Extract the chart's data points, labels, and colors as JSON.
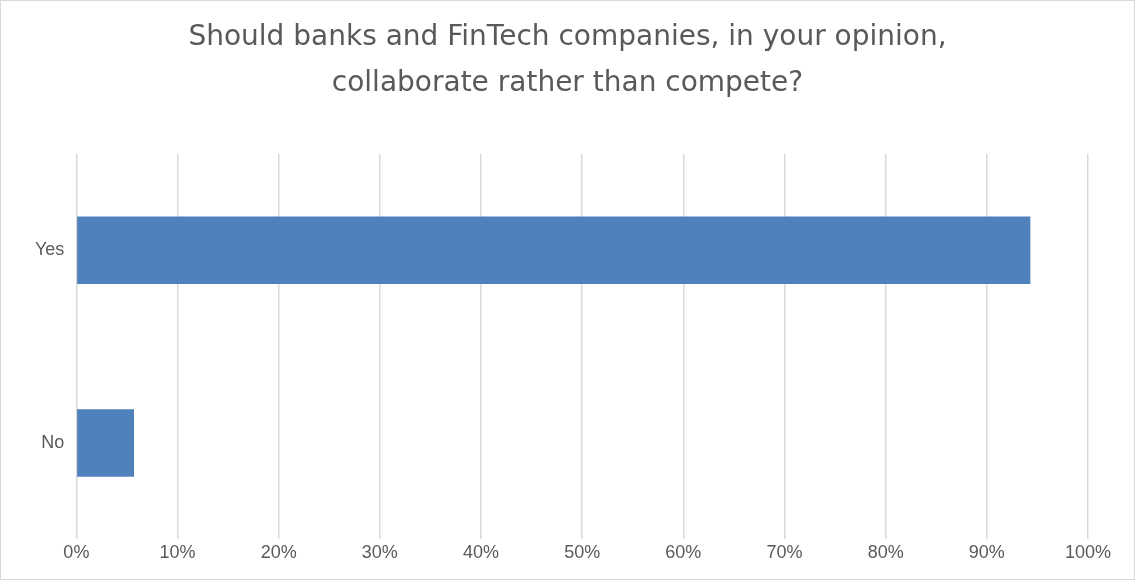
{
  "chart_data": {
    "type": "bar",
    "orientation": "horizontal",
    "title": "Should banks and FinTech companies, in your opinion, collaborate rather than compete?",
    "categories": [
      "Yes",
      "No"
    ],
    "values": [
      94.3,
      5.7
    ],
    "color": "#4f81bd",
    "xlim": [
      0,
      100
    ],
    "xticks": [
      {
        "value": 0,
        "label": "0%"
      },
      {
        "value": 10,
        "label": "10%"
      },
      {
        "value": 20,
        "label": "20%"
      },
      {
        "value": 30,
        "label": "30%"
      },
      {
        "value": 40,
        "label": "40%"
      },
      {
        "value": 50,
        "label": "50%"
      },
      {
        "value": 60,
        "label": "60%"
      },
      {
        "value": 70,
        "label": "70%"
      },
      {
        "value": 80,
        "label": "80%"
      },
      {
        "value": 90,
        "label": "90%"
      },
      {
        "value": 100,
        "label": "100%"
      }
    ],
    "grid": "x",
    "legend": false
  }
}
